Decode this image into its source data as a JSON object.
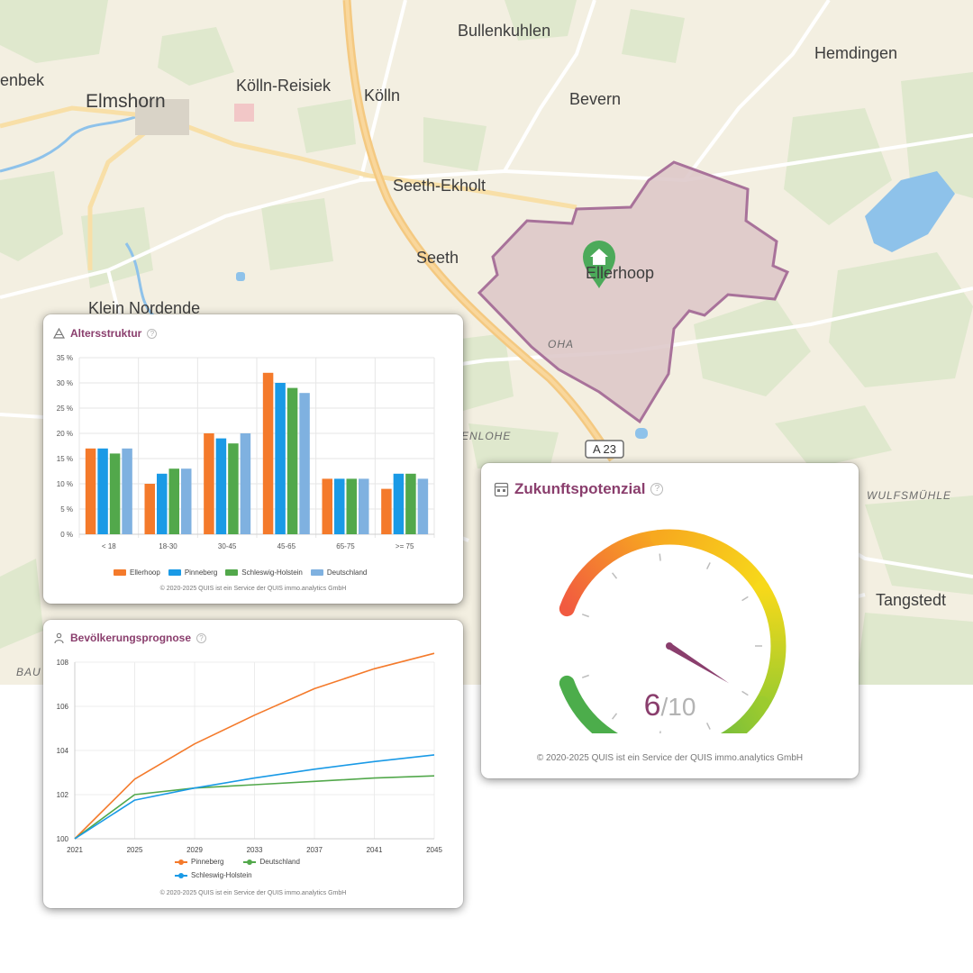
{
  "map": {
    "places": {
      "elmshorn": "Elmshorn",
      "koelln_reisiek": "Kölln-Reisiek",
      "koelln": "Kölln",
      "bullenkuhlen": "Bullenkuhlen",
      "bevern": "Bevern",
      "hemdingen": "Hemdingen",
      "seeth_ekholt": "Seeth-Ekholt",
      "seeth": "Seeth",
      "ellerhoop": "Ellerhoop",
      "klein_nordende": "Klein Nordende",
      "tangstedt": "Tangstedt",
      "enbek": "enbek",
      "oha": "OHA",
      "enlohe": "ENLOHE",
      "wulfsmuehle": "WULFSMÜHLE",
      "bau": "BAU"
    },
    "road_shield": "A 23",
    "marker_icon": "home-marker-icon",
    "colors": {
      "land": "#f3efe1",
      "park": "#dfe8cd",
      "water": "#8ec2ea",
      "motorway": "#f4c981",
      "region_fill": "#dcc5c7",
      "region_border": "#a8729a"
    }
  },
  "alter_card": {
    "title": "Altersstruktur",
    "icon": "triangle-stack-icon",
    "help": "?",
    "copyright": "© 2020-2025 QUIS ist ein Service der QUIS immo.analytics GmbH",
    "legend": [
      "Ellerhoop",
      "Pinneberg",
      "Schleswig-Holstein",
      "Deutschland"
    ]
  },
  "prognose_card": {
    "title": "Bevölkerungsprognose",
    "icon": "people-icon",
    "help": "?",
    "copyright": "© 2020-2025 QUIS ist ein Service der QUIS immo.analytics GmbH",
    "legend": [
      "Pinneberg",
      "Deutschland",
      "Schleswig-Holstein"
    ]
  },
  "zukunft_card": {
    "title": "Zukunftspotenzial",
    "icon": "building-icon",
    "help": "?",
    "value": "6",
    "max": "/10",
    "copyright": "© 2020-2025 QUIS ist ein Service der QUIS immo.analytics GmbH"
  },
  "chart_data": [
    {
      "type": "bar",
      "title": "Altersstruktur",
      "categories": [
        "< 18",
        "18-30",
        "30-45",
        "45-65",
        "65-75",
        ">= 75"
      ],
      "yticks": [
        "0 %",
        "5 %",
        "10 %",
        "15 %",
        "20 %",
        "25 %",
        "30 %",
        "35 %"
      ],
      "ylim": [
        0,
        35
      ],
      "grid": true,
      "legend_position": "bottom",
      "series": [
        {
          "name": "Ellerhoop",
          "color": "#f47a2b",
          "values": [
            17,
            10,
            20,
            32,
            11,
            9
          ]
        },
        {
          "name": "Pinneberg",
          "color": "#1a9ae6",
          "values": [
            17,
            12,
            19,
            30,
            11,
            12
          ]
        },
        {
          "name": "Schleswig-Holstein",
          "color": "#52a84b",
          "values": [
            16,
            13,
            18,
            29,
            11,
            12
          ]
        },
        {
          "name": "Deutschland",
          "color": "#7fb1e0",
          "values": [
            17,
            13,
            20,
            28,
            11,
            11
          ]
        }
      ]
    },
    {
      "type": "line",
      "title": "Bevölkerungsprognose",
      "x": [
        2021,
        2025,
        2029,
        2033,
        2037,
        2041,
        2045
      ],
      "xticks": [
        "2021",
        "2025",
        "2029",
        "2033",
        "2037",
        "2041",
        "2045"
      ],
      "yticks": [
        "100",
        "102",
        "104",
        "106",
        "108"
      ],
      "ylim": [
        100,
        108
      ],
      "grid": true,
      "legend_position": "bottom",
      "series": [
        {
          "name": "Pinneberg",
          "color": "#f47a2b",
          "values": [
            100,
            102.7,
            104.3,
            105.6,
            106.8,
            107.7,
            108.4
          ]
        },
        {
          "name": "Deutschland",
          "color": "#52a84b",
          "values": [
            100,
            102.0,
            102.3,
            102.45,
            102.6,
            102.75,
            102.85
          ]
        },
        {
          "name": "Schleswig-Holstein",
          "color": "#1a9ae6",
          "values": [
            100,
            101.75,
            102.3,
            102.75,
            103.15,
            103.5,
            103.8
          ]
        }
      ]
    },
    {
      "type": "gauge",
      "title": "Zukunftspotenzial",
      "value": 6,
      "max": 10,
      "colors": [
        "#f15a40",
        "#f7a91f",
        "#f7d91a",
        "#9ccb2e",
        "#4cad4b"
      ]
    }
  ]
}
